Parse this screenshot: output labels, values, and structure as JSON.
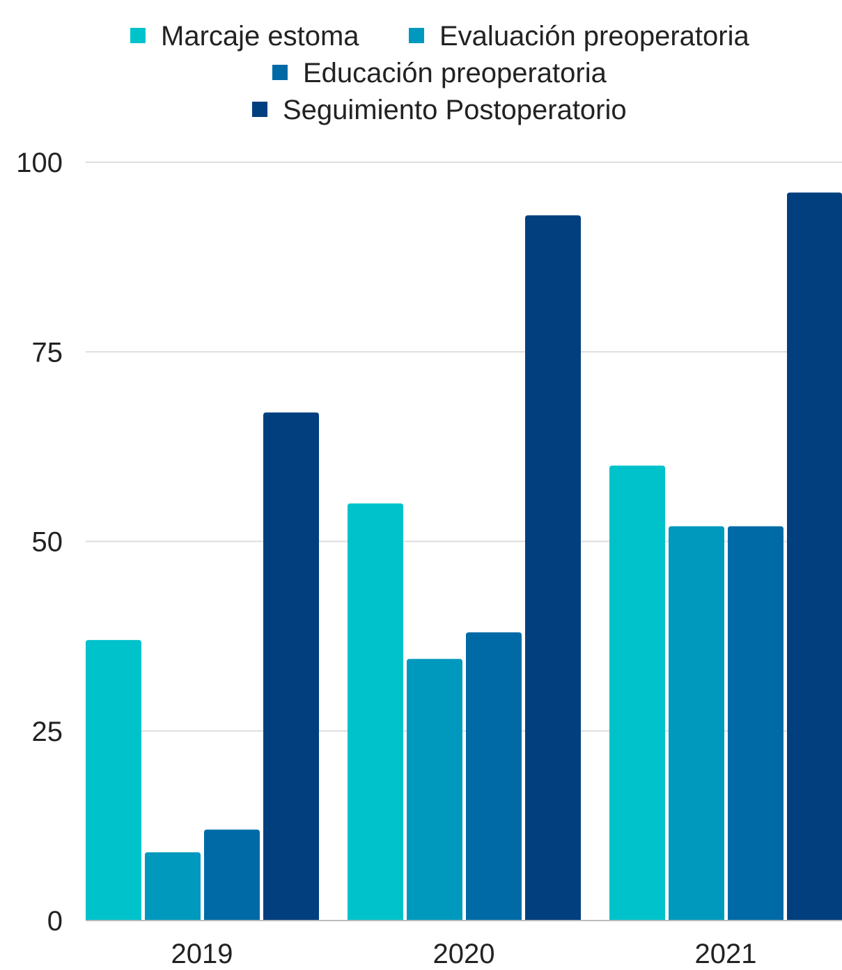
{
  "chart_data": {
    "type": "bar",
    "title": "",
    "xlabel": "",
    "ylabel": "",
    "categories": [
      "2019",
      "2020",
      "2021"
    ],
    "series": [
      {
        "name": "Marcaje estoma",
        "values": [
          37,
          55,
          60
        ],
        "color": "#00c2cb"
      },
      {
        "name": "Evaluación preoperatoria",
        "values": [
          9,
          34.5,
          52
        ],
        "color": "#0099be"
      },
      {
        "name": "Educación preoperatoria",
        "values": [
          12,
          38,
          52
        ],
        "color": "#006aa6"
      },
      {
        "name": "Seguimiento Postoperatorio",
        "values": [
          67,
          93,
          96
        ],
        "color": "#013f7f"
      }
    ],
    "ylim": [
      0,
      100
    ],
    "yticks": [
      0,
      25,
      50,
      75,
      100
    ],
    "grid": true,
    "legend_position": "top-center"
  }
}
